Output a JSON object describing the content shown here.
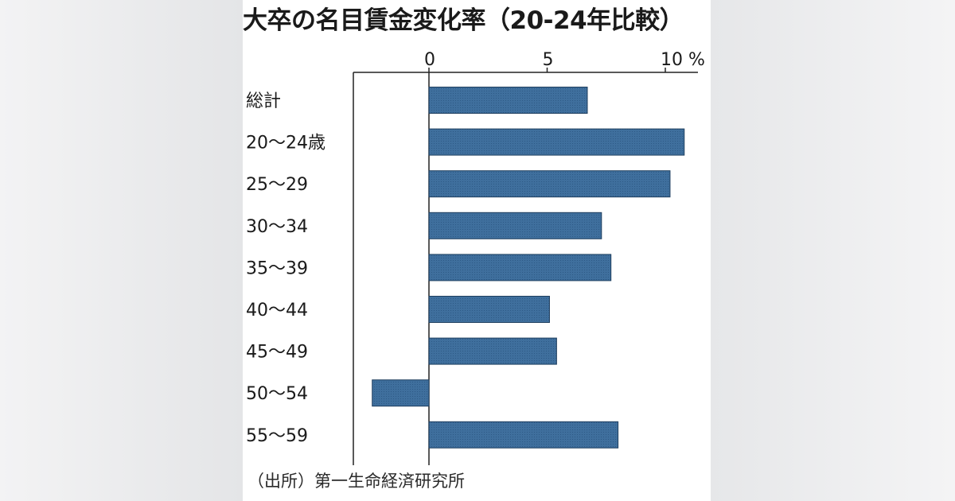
{
  "title": "大卒の名目賃金変化率（20-24年比較）",
  "source": "（出所）第一生命経済研究所",
  "colors": {
    "bar_fill": "#3f6f9d",
    "bar_stroke": "#1f3f5f",
    "axis": "#222222",
    "text": "#1a1a1a"
  },
  "chart_data": {
    "type": "bar",
    "orientation": "horizontal",
    "title": "大卒の名目賃金変化率（20-24年比較）",
    "xlabel": "",
    "ylabel": "",
    "unit": "%",
    "xlim": [
      -3.2,
      11.5
    ],
    "ticks": [
      {
        "value": 0,
        "label": "0"
      },
      {
        "value": 5,
        "label": "5"
      },
      {
        "value": 10,
        "label": "10 %"
      }
    ],
    "categories": [
      "総計",
      "20～24歳",
      "25～29",
      "30～34",
      "35～39",
      "40～44",
      "45～49",
      "50～54",
      "55～59"
    ],
    "values": [
      6.7,
      10.8,
      10.2,
      7.3,
      7.7,
      5.1,
      5.4,
      -2.4,
      8.0
    ],
    "grid": false,
    "legend": "none"
  }
}
